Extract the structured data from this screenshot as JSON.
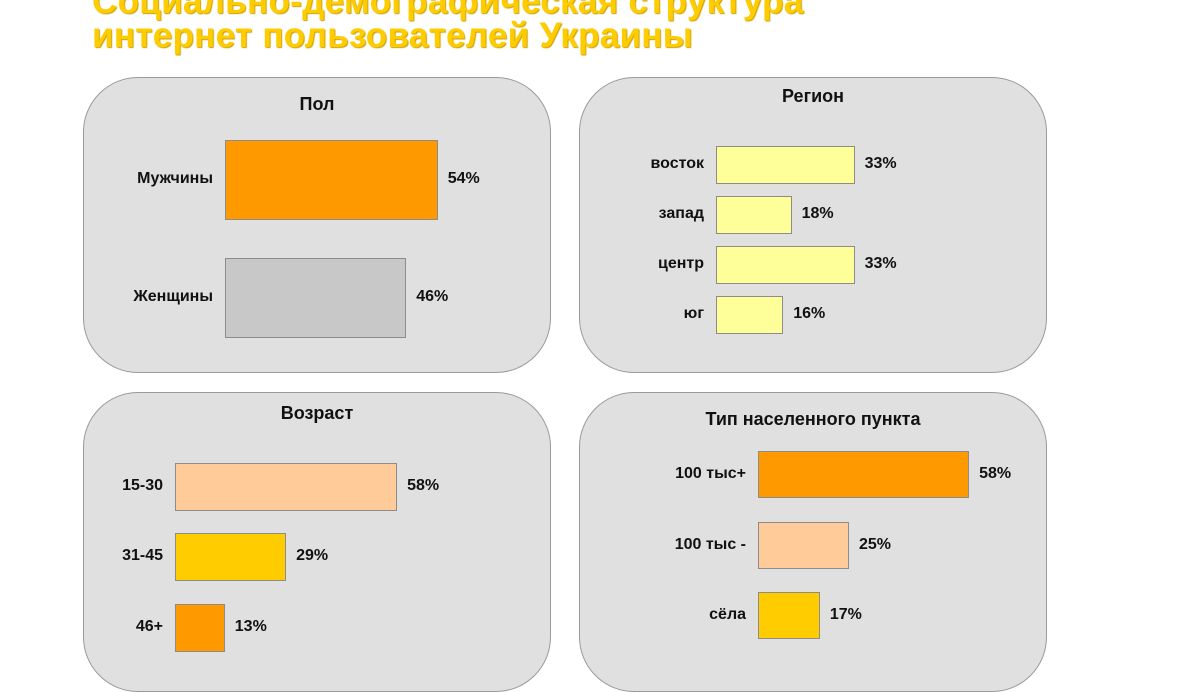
{
  "title_line1": "Социально-демографическая структура",
  "title_line2": "интернет пользователей Украины",
  "chart_data": [
    {
      "type": "bar",
      "orientation": "horizontal",
      "title": "Пол",
      "categories": [
        "Мужчины",
        "Женщины"
      ],
      "values": [
        54,
        46
      ],
      "labels": [
        "54%",
        "46%"
      ],
      "colors": [
        "#FF9900",
        "#C8C8C8"
      ]
    },
    {
      "type": "bar",
      "orientation": "horizontal",
      "title": "Регион",
      "categories": [
        "восток",
        "запад",
        "центр",
        "юг"
      ],
      "values": [
        33,
        18,
        33,
        16
      ],
      "labels": [
        "33%",
        "18%",
        "33%",
        "16%"
      ],
      "colors": [
        "#FFFF99",
        "#FFFF99",
        "#FFFF99",
        "#FFFF99"
      ]
    },
    {
      "type": "bar",
      "orientation": "horizontal",
      "title": "Возраст",
      "categories": [
        "15-30",
        "31-45",
        "46+"
      ],
      "values": [
        58,
        29,
        13
      ],
      "labels": [
        "58%",
        "29%",
        "13%"
      ],
      "colors": [
        "#FFCC99",
        "#FFCC00",
        "#FF9900"
      ]
    },
    {
      "type": "bar",
      "orientation": "horizontal",
      "title": "Тип населенного пункта",
      "categories": [
        "100 тыс+",
        "100 тыс -",
        "сёла"
      ],
      "values": [
        58,
        25,
        17
      ],
      "labels": [
        "58%",
        "25%",
        "17%"
      ],
      "colors": [
        "#FF9900",
        "#FFCC99",
        "#FFCC00"
      ]
    }
  ]
}
